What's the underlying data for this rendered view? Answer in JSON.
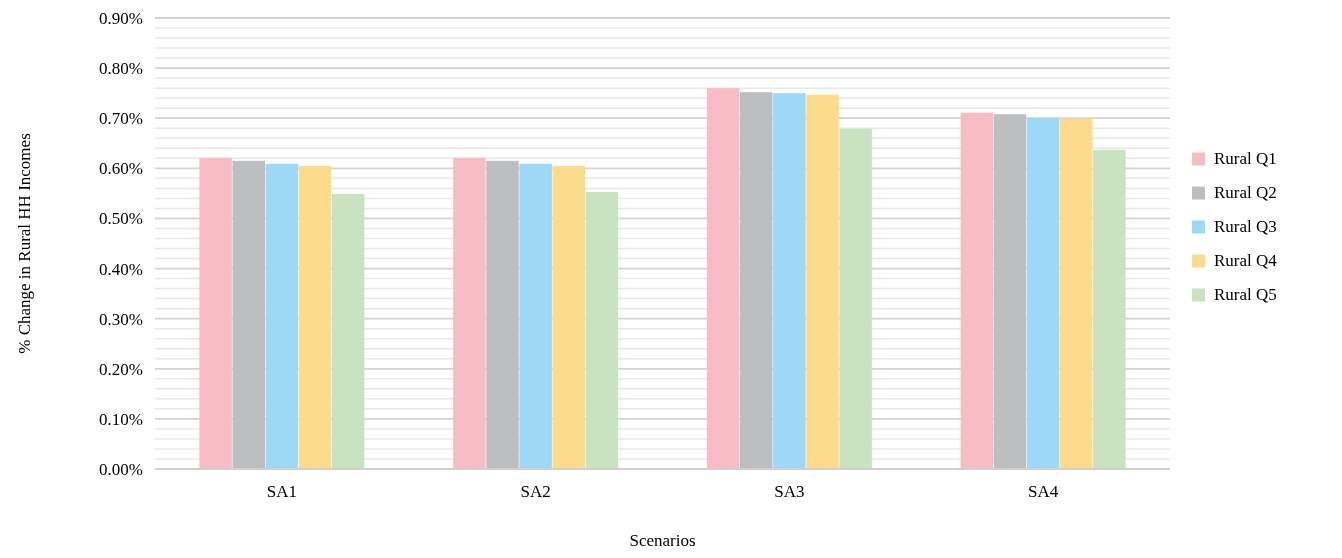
{
  "chart_data": {
    "type": "bar",
    "xlabel": "Scenarios",
    "ylabel": "% Change in Rural HH Incomes",
    "categories": [
      "SA1",
      "SA2",
      "SA3",
      "SA4"
    ],
    "series": [
      {
        "name": "Rural Q1",
        "color": "#f8bcc5",
        "values": [
          0.621,
          0.621,
          0.76,
          0.711
        ]
      },
      {
        "name": "Rural Q2",
        "color": "#bdbec0",
        "values": [
          0.615,
          0.615,
          0.752,
          0.708
        ]
      },
      {
        "name": "Rural Q3",
        "color": "#9dd9f7",
        "values": [
          0.609,
          0.609,
          0.75,
          0.701
        ]
      },
      {
        "name": "Rural Q4",
        "color": "#fcdc8a",
        "values": [
          0.605,
          0.605,
          0.747,
          0.699
        ]
      },
      {
        "name": "Rural Q5",
        "color": "#c9e2c0",
        "values": [
          0.549,
          0.553,
          0.679,
          0.637
        ]
      }
    ],
    "ylim": [
      0,
      0.9
    ],
    "yticks": [
      {
        "value": 0,
        "label": "0.00%"
      },
      {
        "value": 0.02,
        "label": null
      },
      {
        "value": 0.04,
        "label": null
      },
      {
        "value": 0.06,
        "label": null
      },
      {
        "value": 0.08,
        "label": null
      },
      {
        "value": 0.1,
        "label": "0.10%"
      },
      {
        "value": 0.12,
        "label": null
      },
      {
        "value": 0.14,
        "label": null
      },
      {
        "value": 0.16,
        "label": null
      },
      {
        "value": 0.18,
        "label": null
      },
      {
        "value": 0.2,
        "label": "0.20%"
      },
      {
        "value": 0.22,
        "label": null
      },
      {
        "value": 0.24,
        "label": null
      },
      {
        "value": 0.26,
        "label": null
      },
      {
        "value": 0.28,
        "label": null
      },
      {
        "value": 0.3,
        "label": "0.30%"
      },
      {
        "value": 0.32,
        "label": null
      },
      {
        "value": 0.34,
        "label": null
      },
      {
        "value": 0.36,
        "label": null
      },
      {
        "value": 0.38,
        "label": null
      },
      {
        "value": 0.4,
        "label": "0.40%"
      },
      {
        "value": 0.42,
        "label": null
      },
      {
        "value": 0.44,
        "label": null
      },
      {
        "value": 0.46,
        "label": null
      },
      {
        "value": 0.48,
        "label": null
      },
      {
        "value": 0.5,
        "label": "0.50%"
      },
      {
        "value": 0.52,
        "label": null
      },
      {
        "value": 0.54,
        "label": null
      },
      {
        "value": 0.56,
        "label": null
      },
      {
        "value": 0.58,
        "label": null
      },
      {
        "value": 0.6,
        "label": "0.60%"
      },
      {
        "value": 0.62,
        "label": null
      },
      {
        "value": 0.64,
        "label": null
      },
      {
        "value": 0.66,
        "label": null
      },
      {
        "value": 0.68,
        "label": null
      },
      {
        "value": 0.7,
        "label": "0.70%"
      },
      {
        "value": 0.72,
        "label": null
      },
      {
        "value": 0.74,
        "label": null
      },
      {
        "value": 0.76,
        "label": null
      },
      {
        "value": 0.78,
        "label": null
      },
      {
        "value": 0.8,
        "label": "0.80%"
      },
      {
        "value": 0.82,
        "label": null
      },
      {
        "value": 0.84,
        "label": null
      },
      {
        "value": 0.86,
        "label": null
      },
      {
        "value": 0.88,
        "label": null
      },
      {
        "value": 0.9,
        "label": "0.90%"
      }
    ],
    "grid": true,
    "legend": "right"
  }
}
